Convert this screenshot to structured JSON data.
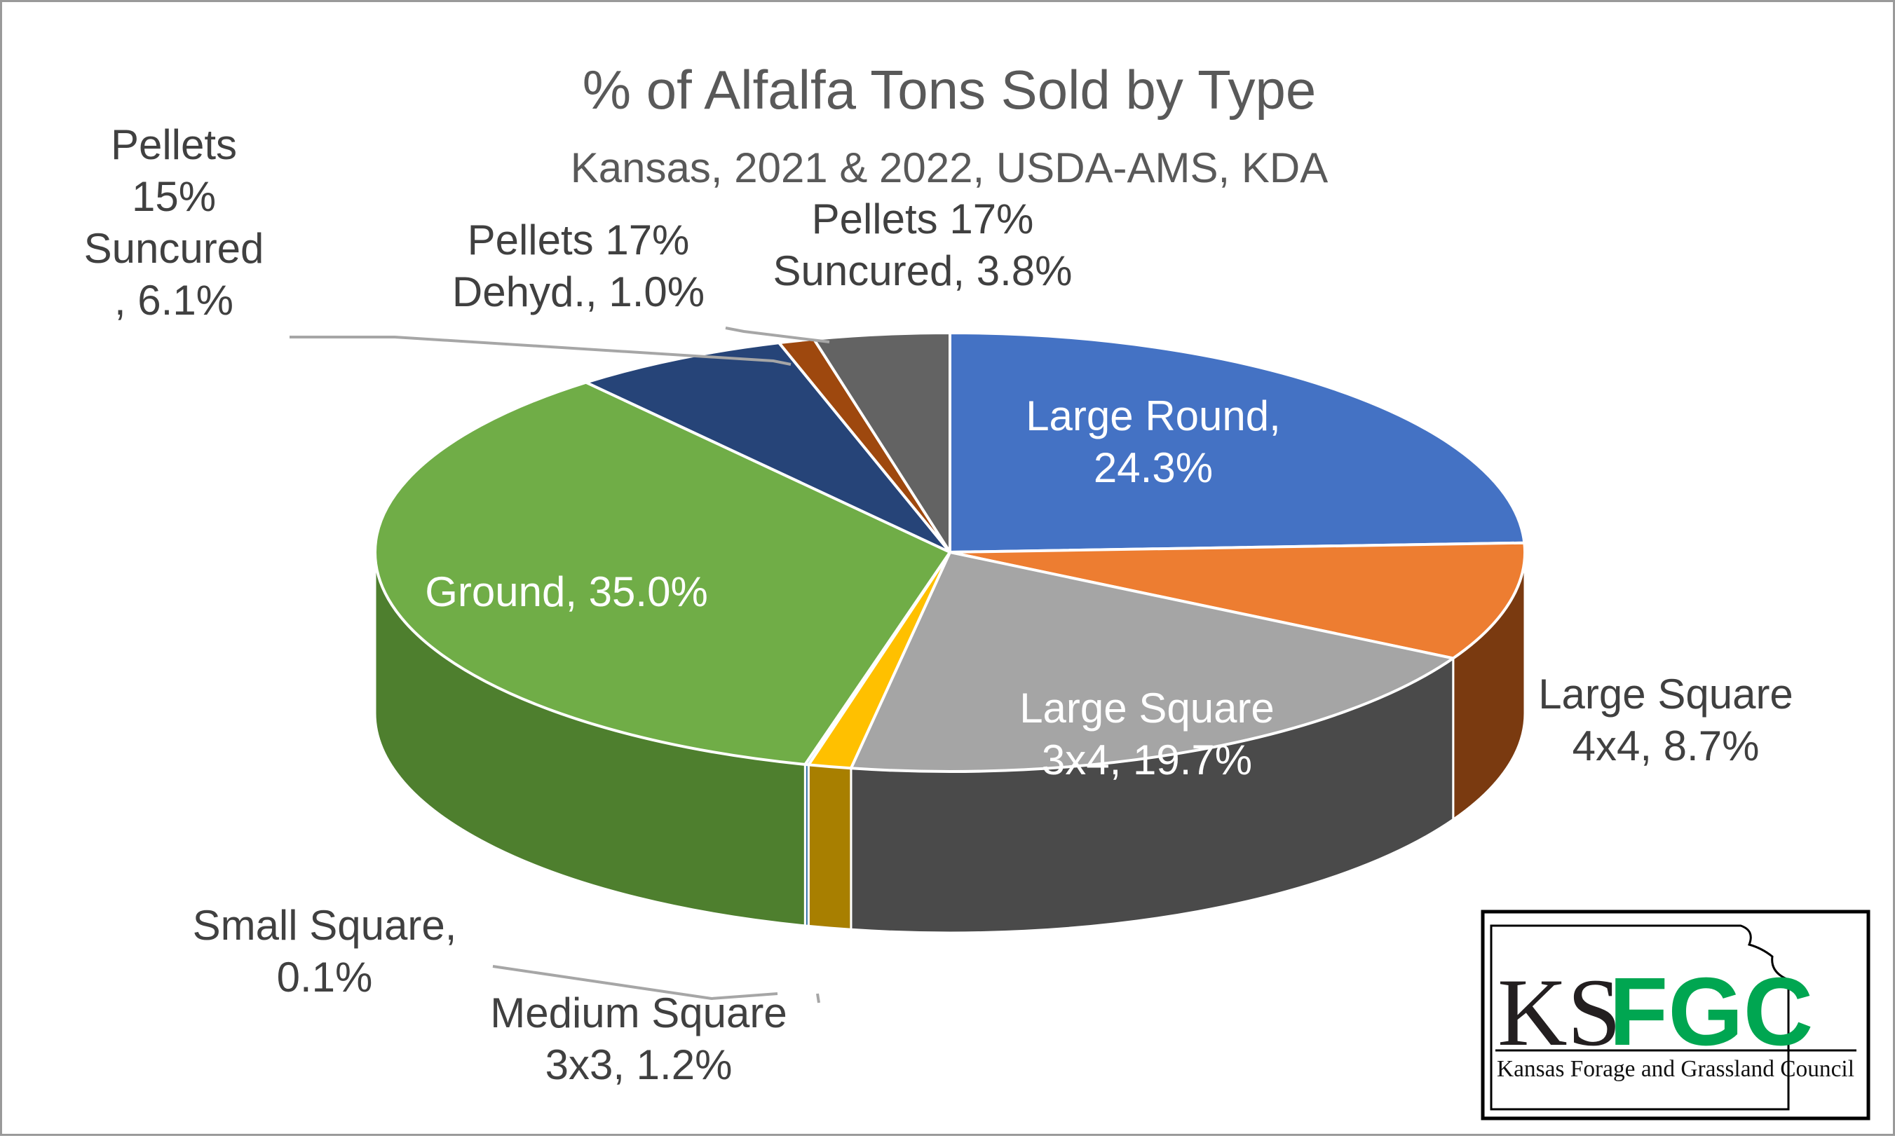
{
  "chart_data": {
    "type": "pie",
    "title": "% of Alfalfa Tons Sold by Type",
    "subtitle": "Kansas, 2021 & 2022, USDA-AMS, KDA",
    "slices": [
      {
        "name": "Large Round",
        "value": 24.3,
        "label_lines": [
          "Large Round,",
          "24.3%"
        ],
        "color": "#4472C4",
        "side_color": "#2F5597",
        "label_color": "#ffffff"
      },
      {
        "name": "Large Square 4x4",
        "value": 8.7,
        "label_lines": [
          "Large Square",
          "4x4, 8.7%"
        ],
        "color": "#ED7D31",
        "side_color": "#7A3A10",
        "label_color": "#404040"
      },
      {
        "name": "Large Square 3x4",
        "value": 19.7,
        "label_lines": [
          "Large Square",
          "3x4, 19.7%"
        ],
        "color": "#A5A5A5",
        "side_color": "#4A4A4A",
        "label_color": "#ffffff"
      },
      {
        "name": "Medium Square 3x3",
        "value": 1.2,
        "label_lines": [
          "Medium Square",
          "3x3, 1.2%"
        ],
        "color": "#FFC000",
        "side_color": "#A87F00",
        "label_color": "#404040"
      },
      {
        "name": "Small Square",
        "value": 0.1,
        "label_lines": [
          "Small Square,",
          "0.1%"
        ],
        "color": "#5B9BD5",
        "side_color": "#2E6DA4",
        "label_color": "#404040"
      },
      {
        "name": "Ground",
        "value": 35.0,
        "label_lines": [
          "Ground, 35.0%"
        ],
        "color": "#70AD47",
        "side_color": "#4E7F2E",
        "label_color": "#ffffff"
      },
      {
        "name": "Pellets 15% Suncured",
        "value": 6.1,
        "label_lines": [
          "Pellets",
          "15%",
          "Suncured",
          ", 6.1%"
        ],
        "color": "#264478",
        "side_color": "#172B4D",
        "label_color": "#404040"
      },
      {
        "name": "Pellets 17% Dehyd.",
        "value": 1.0,
        "label_lines": [
          "Pellets 17%",
          "Dehyd., 1.0%"
        ],
        "color": "#9E480E",
        "side_color": "#5C2A08",
        "label_color": "#404040"
      },
      {
        "name": "Pellets 17% Suncured",
        "value": 3.8,
        "label_lines": [
          "Pellets 17%",
          "Suncured, 3.8%"
        ],
        "color": "#636363",
        "side_color": "#3A3A3A",
        "label_color": "#404040"
      }
    ]
  },
  "logo": {
    "letters_ks": "KS",
    "letters_fgc": "FGC",
    "org_name": "Kansas Forage and Grassland Council"
  }
}
